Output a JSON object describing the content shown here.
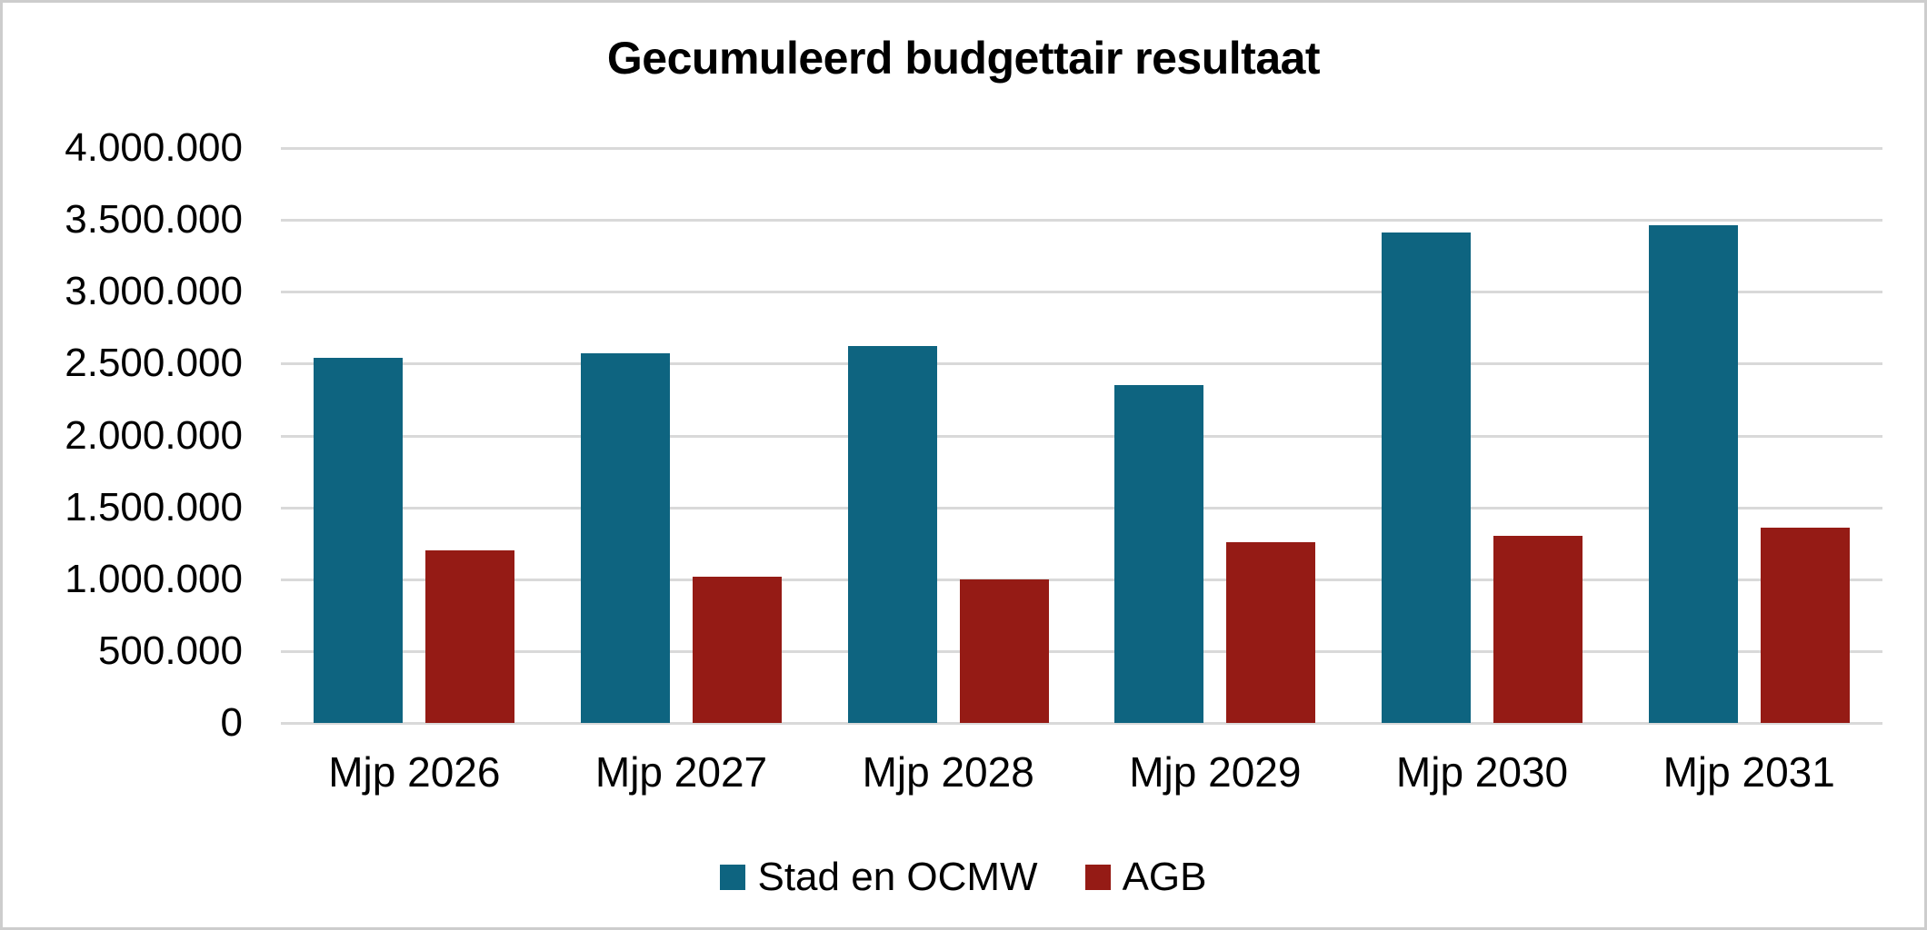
{
  "frame": {
    "background": "#ffffff",
    "border_color": "#cdcdcd"
  },
  "chart_data": {
    "type": "bar",
    "title": "Gecumuleerd budgettair resultaat",
    "categories": [
      "Mjp 2026",
      "Mjp 2027",
      "Mjp 2028",
      "Mjp 2029",
      "Mjp 2030",
      "Mjp 2031"
    ],
    "series": [
      {
        "name": "Stad en OCMW",
        "color": "#0E6480",
        "values": [
          2540000,
          2570000,
          2620000,
          2350000,
          3410000,
          3460000
        ]
      },
      {
        "name": "AGB",
        "color": "#951B15",
        "values": [
          1200000,
          1020000,
          1000000,
          1260000,
          1300000,
          1360000
        ]
      }
    ],
    "ylim": [
      0,
      4000000
    ],
    "ytick_step": 500000,
    "ytick_labels": [
      "0",
      "500.000",
      "1.000.000",
      "1.500.000",
      "2.000.000",
      "2.500.000",
      "3.000.000",
      "3.500.000",
      "4.000.000"
    ],
    "xlabel": "",
    "ylabel": "",
    "grid": true,
    "gridline_color": "#d9d9d9",
    "axis_text_color": "#000000",
    "legend_position": "bottom"
  }
}
